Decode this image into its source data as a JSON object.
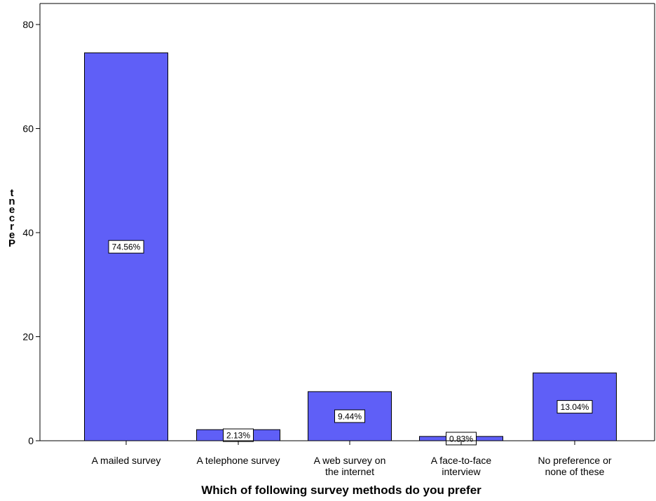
{
  "chart_data": {
    "type": "bar",
    "title": "",
    "xlabel": "Which of following survey methods do you prefer",
    "ylabel": "Percent",
    "ylim": [
      0,
      80
    ],
    "yticks": [
      0,
      20,
      40,
      60,
      80
    ],
    "grid": false,
    "categories": [
      [
        "A mailed survey"
      ],
      [
        "A telephone survey"
      ],
      [
        "A web survey on",
        "the internet"
      ],
      [
        "A face-to-face",
        "interview"
      ],
      [
        "No preference or",
        "none of these"
      ]
    ],
    "values": [
      74.56,
      2.13,
      9.44,
      0.83,
      13.04
    ],
    "data_labels": [
      "74.56%",
      "2.13%",
      "9.44%",
      "0.83%",
      "13.04%"
    ],
    "colors": {
      "bar_fill": "#5f5ff7",
      "bar_stroke": "#000000",
      "axis": "#000000",
      "label_box": "#ffffff"
    }
  }
}
